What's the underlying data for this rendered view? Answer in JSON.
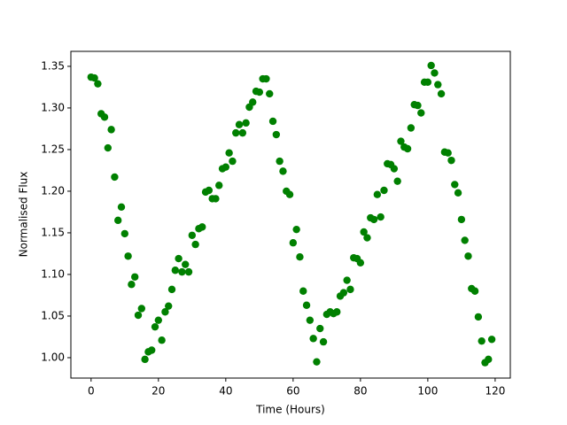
{
  "chart_data": {
    "type": "scatter",
    "x_label": "Time (Hours)",
    "y_label": "Normalised Flux",
    "color": "#008000",
    "x": [
      0,
      1,
      2,
      3,
      4,
      5,
      6,
      7,
      8,
      9,
      10,
      11,
      12,
      13,
      14,
      15,
      16,
      17,
      18,
      19,
      20,
      21,
      22,
      23,
      24,
      25,
      26,
      27,
      28,
      29,
      30,
      31,
      32,
      33,
      34,
      35,
      36,
      37,
      38,
      39,
      40,
      41,
      42,
      43,
      44,
      45,
      46,
      47,
      48,
      49,
      50,
      51,
      52,
      53,
      54,
      55,
      56,
      57,
      58,
      59,
      60,
      61,
      62,
      63,
      64,
      65,
      66,
      67,
      68,
      69,
      70,
      71,
      72,
      73,
      74,
      75,
      76,
      77,
      78,
      79,
      80,
      81,
      82,
      83,
      84,
      85,
      86,
      87,
      88,
      89,
      90,
      91,
      92,
      93,
      94,
      95,
      96,
      97,
      98,
      99,
      100,
      101,
      102,
      103,
      104,
      105,
      106,
      107,
      108,
      109,
      110,
      111,
      112,
      113,
      114,
      115,
      116,
      117,
      118,
      119
    ],
    "y": [
      1.337,
      1.336,
      1.329,
      1.293,
      1.289,
      1.252,
      1.274,
      1.217,
      1.165,
      1.181,
      1.149,
      1.122,
      1.088,
      1.097,
      1.051,
      1.059,
      0.998,
      1.007,
      1.009,
      1.037,
      1.045,
      1.021,
      1.055,
      1.062,
      1.082,
      1.105,
      1.119,
      1.103,
      1.112,
      1.103,
      1.147,
      1.136,
      1.155,
      1.157,
      1.199,
      1.201,
      1.191,
      1.191,
      1.207,
      1.227,
      1.229,
      1.246,
      1.236,
      1.27,
      1.28,
      1.27,
      1.282,
      1.301,
      1.307,
      1.32,
      1.319,
      1.335,
      1.335,
      1.317,
      1.284,
      1.268,
      1.236,
      1.224,
      1.2,
      1.196,
      1.138,
      1.154,
      1.121,
      1.08,
      1.063,
      1.045,
      1.023,
      0.995,
      1.035,
      1.019,
      1.052,
      1.055,
      1.053,
      1.055,
      1.074,
      1.078,
      1.093,
      1.082,
      1.12,
      1.119,
      1.114,
      1.151,
      1.144,
      1.168,
      1.166,
      1.196,
      1.169,
      1.201,
      1.233,
      1.232,
      1.227,
      1.212,
      1.26,
      1.253,
      1.251,
      1.276,
      1.304,
      1.303,
      1.294,
      1.331,
      1.331,
      1.351,
      1.342,
      1.328,
      1.317,
      1.247,
      1.246,
      1.237,
      1.208,
      1.198,
      1.166,
      1.141,
      1.122,
      1.083,
      1.08,
      1.049,
      1.02,
      0.994,
      0.998,
      1.022
    ],
    "xlim": [
      -6,
      124.5
    ],
    "ylim": [
      0.9755,
      1.368
    ],
    "xticks": [
      0,
      20,
      40,
      60,
      80,
      100,
      120
    ],
    "yticks": [
      {
        "value": 1.0,
        "label": "1.00"
      },
      {
        "value": 1.05,
        "label": "1.05"
      },
      {
        "value": 1.1,
        "label": "1.10"
      },
      {
        "value": 1.15,
        "label": "1.15"
      },
      {
        "value": 1.2,
        "label": "1.20"
      },
      {
        "value": 1.25,
        "label": "1.25"
      },
      {
        "value": 1.3,
        "label": "1.30"
      },
      {
        "value": 1.35,
        "label": "1.35"
      }
    ]
  }
}
